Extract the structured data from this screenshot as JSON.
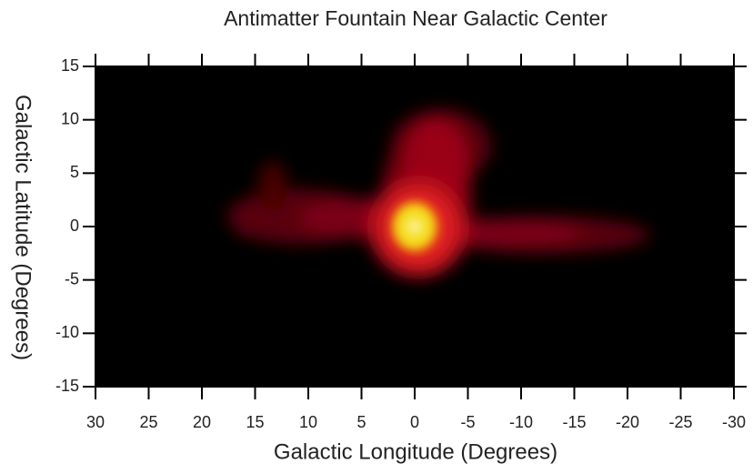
{
  "chart_data": {
    "type": "heatmap",
    "title": "Antimatter Fountain Near Galactic Center",
    "x_label": "Galactic Longitude (Degrees)",
    "y_label": "Galactic Latitude (Degrees)",
    "xlim": [
      30,
      -30
    ],
    "xticks": [
      30,
      25,
      20,
      15,
      10,
      5,
      0,
      -5,
      -10,
      -15,
      -20,
      -25,
      -30
    ],
    "ylim": [
      -15,
      15
    ],
    "yticks": [
      -15,
      -10,
      -5,
      0,
      5,
      10,
      15
    ],
    "background": "#000000"
  }
}
